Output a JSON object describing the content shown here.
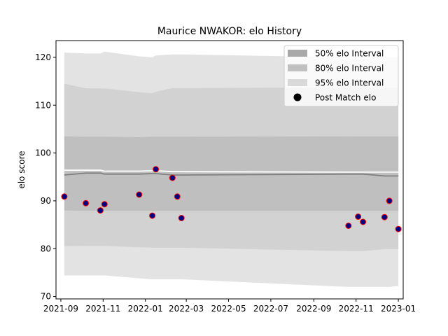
{
  "chart_data": {
    "type": "line",
    "title": "Maurice NWAKOR: elo History",
    "xlabel": "",
    "ylabel": "elo score",
    "xlim": [
      "2021-08-25",
      "2023-01-08"
    ],
    "ylim": [
      69.5,
      123.5
    ],
    "x_ticks": [
      "2021-09",
      "2021-11",
      "2022-01",
      "2022-03",
      "2022-05",
      "2022-07",
      "2022-09",
      "2022-11",
      "2023-01"
    ],
    "y_ticks": [
      70,
      80,
      90,
      100,
      110,
      120
    ],
    "grid": false,
    "legend_position": "top-right",
    "legend": [
      {
        "label": "50% elo Interval",
        "kind": "patch",
        "color": "#a9a9a9"
      },
      {
        "label": "80% elo Interval",
        "kind": "patch",
        "color": "#c0c0c0"
      },
      {
        "label": "95% elo Interval",
        "kind": "patch",
        "color": "#d9d9d9"
      },
      {
        "label": "Post Match elo",
        "kind": "marker",
        "color": "#000000"
      }
    ],
    "dates": [
      "2021-09-06",
      "2021-10-07",
      "2021-10-28",
      "2021-11-03",
      "2021-12-23",
      "2022-01-11",
      "2022-01-16",
      "2022-02-09",
      "2022-02-16",
      "2022-02-22",
      "2022-10-21",
      "2022-11-04",
      "2022-11-11",
      "2022-12-12",
      "2022-12-19",
      "2023-01-01"
    ],
    "series": [
      {
        "name": "95% elo Interval",
        "type": "band",
        "color": "#e3e3e3",
        "lower": [
          74.4,
          74.4,
          74.4,
          74.4,
          73.8,
          73.6,
          73.6,
          73.6,
          73.6,
          73.6,
          72.0,
          72.0,
          72.0,
          72.0,
          72.0,
          72.2
        ],
        "upper": [
          121.0,
          120.8,
          120.8,
          121.2,
          120.2,
          120.0,
          120.4,
          120.6,
          120.6,
          120.6,
          120.0,
          120.0,
          120.0,
          120.0,
          120.0,
          120.0
        ]
      },
      {
        "name": "80% elo Interval",
        "type": "band",
        "color": "#d2d2d2",
        "lower": [
          80.5,
          80.6,
          80.6,
          80.6,
          80.3,
          80.2,
          80.2,
          80.2,
          80.2,
          80.2,
          79.5,
          79.5,
          79.5,
          79.9,
          79.9,
          79.9
        ],
        "upper": [
          114.5,
          113.5,
          113.5,
          113.5,
          112.7,
          112.5,
          112.8,
          113.6,
          113.6,
          113.6,
          113.7,
          113.7,
          113.7,
          113.7,
          113.7,
          113.7
        ]
      },
      {
        "name": "50% elo Interval",
        "type": "band",
        "color": "#bfbfbf",
        "lower": [
          88.0,
          87.9,
          87.9,
          87.9,
          87.9,
          87.9,
          87.9,
          87.9,
          87.9,
          87.9,
          87.9,
          87.9,
          87.9,
          87.9,
          87.9,
          87.9
        ],
        "upper": [
          103.5,
          103.4,
          103.4,
          103.4,
          103.3,
          103.4,
          103.4,
          103.4,
          103.4,
          103.4,
          103.5,
          103.5,
          103.5,
          103.5,
          103.5,
          103.5
        ]
      },
      {
        "name": "",
        "type": "line",
        "color": "#808080",
        "values": [
          95.4,
          95.8,
          95.8,
          95.6,
          95.6,
          95.7,
          95.7,
          95.4,
          95.4,
          95.4,
          95.6,
          95.6,
          95.6,
          95.2,
          95.2,
          95.2
        ]
      },
      {
        "name": "",
        "type": "line",
        "color": "#ffffff",
        "values": [
          96.4,
          96.4,
          96.4,
          96.2,
          96.2,
          96.3,
          96.3,
          96.1,
          96.1,
          96.1,
          96.0,
          96.0,
          96.0,
          96.0,
          96.0,
          96.0
        ]
      },
      {
        "name": "Post Match elo",
        "type": "scatter",
        "color": "#000080",
        "edgecolor": "#ff0000",
        "values": [
          90.9,
          89.5,
          88.0,
          89.3,
          91.3,
          86.9,
          96.6,
          94.8,
          90.9,
          86.4,
          84.8,
          86.7,
          85.6,
          86.6,
          90.0,
          84.1
        ]
      }
    ]
  }
}
